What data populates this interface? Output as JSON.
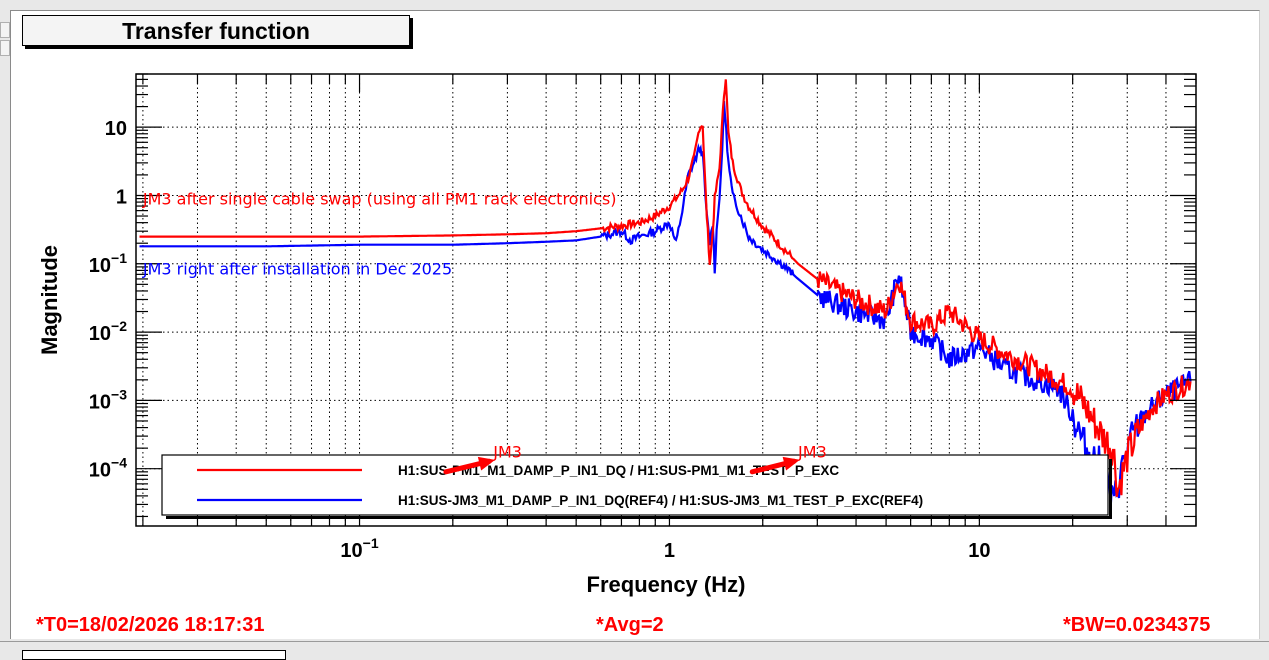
{
  "window": {
    "title": "Transfer function"
  },
  "status_bar": {
    "t0": "*T0=18/02/2026 18:17:31",
    "avg": "*Avg=2",
    "bw": "*BW=0.0234375"
  },
  "colors": {
    "red_series": "#ff0000",
    "blue_series": "#0000ff",
    "status_text": "#ff0000"
  },
  "chart_data": {
    "type": "line",
    "title": "Transfer function",
    "xlabel": "Frequency (Hz)",
    "ylabel": "Magnitude",
    "xscale": "log",
    "yscale": "log",
    "xlim": [
      0.019,
      50
    ],
    "ylim": [
      1.45e-05,
      60
    ],
    "grid": true,
    "x_ticks": [
      {
        "value": 0.1,
        "label_base": "10",
        "label_exp": "−1"
      },
      {
        "value": 1,
        "label_base": "1",
        "label_exp": ""
      },
      {
        "value": 10,
        "label_base": "10",
        "label_exp": ""
      }
    ],
    "y_ticks": [
      {
        "value": 10,
        "label_base": "10",
        "label_exp": ""
      },
      {
        "value": 1,
        "label_base": "1",
        "label_exp": ""
      },
      {
        "value": 0.1,
        "label_base": "10",
        "label_exp": "−1"
      },
      {
        "value": 0.01,
        "label_base": "10",
        "label_exp": "−2"
      },
      {
        "value": 0.001,
        "label_base": "10",
        "label_exp": "−3"
      },
      {
        "value": 0.0001,
        "label_base": "10",
        "label_exp": "−4"
      }
    ],
    "legend": {
      "position": "bottom-center",
      "entries": [
        {
          "label": "H1:SUS-PM1_M1_DAMP_P_IN1_DQ / H1:SUS-PM1_M1_TEST_P_EXC",
          "color": "#ff0000"
        },
        {
          "label": "H1:SUS-JM3_M1_DAMP_P_IN1_DQ(REF4) / H1:SUS-JM3_M1_TEST_P_EXC(REF4)",
          "color": "#0000ff"
        }
      ]
    },
    "annotations": [
      {
        "text": "JM3 after single cable swap (using all PM1 rack electronics)",
        "color": "#ff0000",
        "x": 0.02,
        "y": 0.9
      },
      {
        "text": "JM3 right after installation in Dec 2025",
        "color": "#0000ff",
        "x": 0.02,
        "y": 0.085
      },
      {
        "text": "JM3",
        "color": "#ff0000",
        "x": 0.27,
        "y": 0.00018,
        "arrow_to": [
          0.19,
          9e-05
        ]
      },
      {
        "text": "JM3",
        "color": "#ff0000",
        "x": 2.6,
        "y": 0.00018,
        "arrow_to": [
          1.85,
          9e-05
        ]
      }
    ],
    "series": [
      {
        "name": "H1:SUS-PM1_M1_DAMP_P_IN1_DQ / H1:SUS-PM1_M1_TEST_P_EXC",
        "color": "#ff0000",
        "x": [
          0.0195,
          0.05,
          0.1,
          0.2,
          0.3,
          0.4,
          0.5,
          0.6,
          0.7,
          0.8,
          0.9,
          1.0,
          1.05,
          1.1,
          1.15,
          1.2,
          1.25,
          1.28,
          1.3,
          1.32,
          1.35,
          1.38,
          1.4,
          1.45,
          1.5,
          1.52,
          1.55,
          1.6,
          1.7,
          1.8,
          2.0,
          2.3,
          2.6,
          3.0,
          3.5,
          4.0,
          5.0,
          5.5,
          6.0,
          7.0,
          8.0,
          10,
          12,
          15,
          18,
          20,
          22,
          25,
          27,
          28,
          30,
          33,
          36,
          40,
          45,
          48
        ],
        "y": [
          0.25,
          0.25,
          0.25,
          0.26,
          0.27,
          0.28,
          0.3,
          0.33,
          0.36,
          0.4,
          0.5,
          0.7,
          0.9,
          1.2,
          1.8,
          3.5,
          10,
          11,
          2.0,
          0.5,
          0.1,
          0.3,
          0.9,
          2.5,
          30,
          55,
          8,
          3,
          1.2,
          0.7,
          0.35,
          0.18,
          0.1,
          0.06,
          0.04,
          0.03,
          0.02,
          0.06,
          0.015,
          0.012,
          0.02,
          0.008,
          0.005,
          0.003,
          0.002,
          0.0015,
          0.0008,
          0.0003,
          0.0002,
          5e-05,
          0.00015,
          0.0004,
          0.0008,
          0.0012,
          0.0016,
          0.0019
        ]
      },
      {
        "name": "H1:SUS-JM3_M1_DAMP_P_IN1_DQ(REF4) / H1:SUS-JM3_M1_TEST_P_EXC(REF4)",
        "color": "#0000ff",
        "x": [
          0.0195,
          0.05,
          0.1,
          0.2,
          0.3,
          0.4,
          0.5,
          0.6,
          0.7,
          0.75,
          0.8,
          0.9,
          1.0,
          1.05,
          1.1,
          1.15,
          1.2,
          1.25,
          1.28,
          1.32,
          1.35,
          1.38,
          1.4,
          1.42,
          1.45,
          1.48,
          1.5,
          1.55,
          1.6,
          1.7,
          1.8,
          2.0,
          2.3,
          2.6,
          3.0,
          3.5,
          4.0,
          5.0,
          5.5,
          6.0,
          7.0,
          8.0,
          10,
          12,
          15,
          18,
          20,
          22,
          25,
          27,
          30,
          33,
          36,
          40,
          45,
          48
        ],
        "y": [
          0.18,
          0.18,
          0.19,
          0.19,
          0.2,
          0.21,
          0.22,
          0.25,
          0.3,
          0.22,
          0.25,
          0.3,
          0.4,
          0.2,
          0.6,
          2,
          3,
          5,
          4,
          0.5,
          0.2,
          0.4,
          0.08,
          0.3,
          1,
          4,
          25,
          3,
          1.0,
          0.5,
          0.25,
          0.16,
          0.1,
          0.06,
          0.035,
          0.025,
          0.02,
          0.015,
          0.07,
          0.01,
          0.008,
          0.004,
          0.006,
          0.003,
          0.002,
          0.0015,
          0.0006,
          0.0002,
          0.0001,
          3e-05,
          0.0002,
          0.0005,
          0.0008,
          0.0012,
          0.0016,
          0.0019
        ]
      }
    ]
  }
}
